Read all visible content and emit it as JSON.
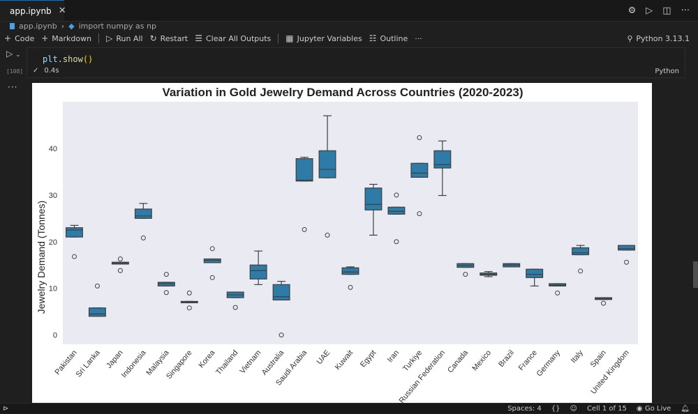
{
  "tab": {
    "title": "app.ipynb",
    "close_icon": "close-icon"
  },
  "breadcrumb": {
    "file": "app.ipynb",
    "symbol": "import numpy as np"
  },
  "toolbar": {
    "code": "Code",
    "markdown": "Markdown",
    "run_all": "Run All",
    "restart": "Restart",
    "clear_outputs": "Clear All Outputs",
    "variables": "Jupyter Variables",
    "outline": "Outline",
    "more": "···"
  },
  "kernel": "Python 3.13.1",
  "cell": {
    "exec_count": "[108]",
    "code_obj": "plt",
    "code_fn": ".show",
    "code_parens": "()",
    "time": "0.4s",
    "lang": "Python"
  },
  "statusbar": {
    "spaces": "Spaces: 4",
    "braces": "{}",
    "cell_pos": "Cell 1 of 15",
    "go_live": "Go Live"
  },
  "chart_data": {
    "type": "box",
    "title": "Variation in Gold Jewelry Demand Across Countries (2020-2023)",
    "ylabel": "Jewelry Demand (Tonnes)",
    "xlabel": "",
    "ylim": [
      -2,
      50
    ],
    "yticks": [
      0,
      10,
      20,
      30,
      40
    ],
    "grid": false,
    "box_color": "#2e7ba8",
    "background": "#eaeaf2",
    "categories": [
      "Pakistan",
      "Sri Lanka",
      "Japan",
      "Indonesia",
      "Malaysia",
      "Singapore",
      "Korea",
      "Thailand",
      "Vietnam",
      "Australia",
      "Saudi Arabia",
      "UAE",
      "Kuwait",
      "Egypt",
      "Iran",
      "Turkiye",
      "Russian Federation",
      "Canada",
      "Mexico",
      "Brazil",
      "France",
      "Germany",
      "Italy",
      "Spain",
      "United Kingdom"
    ],
    "boxes": [
      {
        "whislo": 21.0,
        "q1": 21.0,
        "med": 22.5,
        "q3": 23.0,
        "whishi": 23.5,
        "fliers": [
          16.8
        ]
      },
      {
        "whislo": 4.0,
        "q1": 4.0,
        "med": 4.5,
        "q3": 5.8,
        "whishi": 5.8,
        "fliers": [
          10.5
        ]
      },
      {
        "whislo": 15.2,
        "q1": 15.2,
        "med": 15.4,
        "q3": 15.6,
        "whishi": 15.6,
        "fliers": [
          16.3,
          13.8
        ]
      },
      {
        "whislo": 25.0,
        "q1": 25.0,
        "med": 25.5,
        "q3": 27.0,
        "whishi": 28.2,
        "fliers": [
          20.8
        ]
      },
      {
        "whislo": 10.5,
        "q1": 10.5,
        "med": 11.0,
        "q3": 11.3,
        "whishi": 11.3,
        "fliers": [
          13.0,
          9.1
        ]
      },
      {
        "whislo": 6.9,
        "q1": 6.9,
        "med": 7.1,
        "q3": 7.2,
        "whishi": 7.2,
        "fliers": [
          9.0,
          5.8
        ]
      },
      {
        "whislo": 15.5,
        "q1": 15.5,
        "med": 16.0,
        "q3": 16.3,
        "whishi": 16.3,
        "fliers": [
          18.5,
          12.3
        ]
      },
      {
        "whislo": 8.0,
        "q1": 8.0,
        "med": 8.6,
        "q3": 9.2,
        "whishi": 9.2,
        "fliers": [
          5.9
        ]
      },
      {
        "whislo": 10.8,
        "q1": 12.0,
        "med": 13.8,
        "q3": 15.0,
        "whishi": 18.0,
        "fliers": []
      },
      {
        "whislo": 7.5,
        "q1": 7.5,
        "med": 8.2,
        "q3": 10.8,
        "whishi": 11.5,
        "fliers": [
          0.0
        ]
      },
      {
        "whislo": 33.0,
        "q1": 33.0,
        "med": 33.2,
        "q3": 37.8,
        "whishi": 38.1,
        "fliers": [
          22.6
        ]
      },
      {
        "whislo": 33.7,
        "q1": 33.7,
        "med": 35.5,
        "q3": 39.5,
        "whishi": 47.0,
        "fliers": [
          21.4
        ]
      },
      {
        "whislo": 13.0,
        "q1": 13.0,
        "med": 13.5,
        "q3": 14.4,
        "whishi": 14.6,
        "fliers": [
          10.2
        ]
      },
      {
        "whislo": 21.4,
        "q1": 26.8,
        "med": 28.0,
        "q3": 31.5,
        "whishi": 32.3,
        "fliers": []
      },
      {
        "whislo": 25.9,
        "q1": 25.9,
        "med": 26.5,
        "q3": 27.4,
        "whishi": 27.4,
        "fliers": [
          30.0,
          20.0
        ]
      },
      {
        "whislo": 33.8,
        "q1": 33.8,
        "med": 34.7,
        "q3": 36.8,
        "whishi": 36.8,
        "fliers": [
          42.3,
          26.0
        ]
      },
      {
        "whislo": 29.9,
        "q1": 35.8,
        "med": 36.5,
        "q3": 39.5,
        "whishi": 41.6,
        "fliers": []
      },
      {
        "whislo": 14.5,
        "q1": 14.5,
        "med": 14.9,
        "q3": 15.3,
        "whishi": 15.3,
        "fliers": [
          13.0
        ]
      },
      {
        "whislo": 12.5,
        "q1": 12.8,
        "med": 13.0,
        "q3": 13.3,
        "whishi": 13.6,
        "fliers": []
      },
      {
        "whislo": 14.6,
        "q1": 14.6,
        "med": 15.0,
        "q3": 15.3,
        "whishi": 15.3,
        "fliers": []
      },
      {
        "whislo": 10.5,
        "q1": 12.3,
        "med": 13.0,
        "q3": 14.1,
        "whishi": 14.1,
        "fliers": []
      },
      {
        "whislo": 10.5,
        "q1": 10.5,
        "med": 10.7,
        "q3": 11.0,
        "whishi": 11.0,
        "fliers": [
          9.0
        ]
      },
      {
        "whislo": 17.2,
        "q1": 17.2,
        "med": 17.6,
        "q3": 18.7,
        "whishi": 19.2,
        "fliers": [
          13.7
        ]
      },
      {
        "whislo": 7.6,
        "q1": 7.6,
        "med": 7.8,
        "q3": 8.0,
        "whishi": 8.0,
        "fliers": [
          6.8
        ]
      },
      {
        "whislo": 18.2,
        "q1": 18.2,
        "med": 18.5,
        "q3": 19.2,
        "whishi": 19.2,
        "fliers": [
          15.6
        ]
      }
    ]
  }
}
